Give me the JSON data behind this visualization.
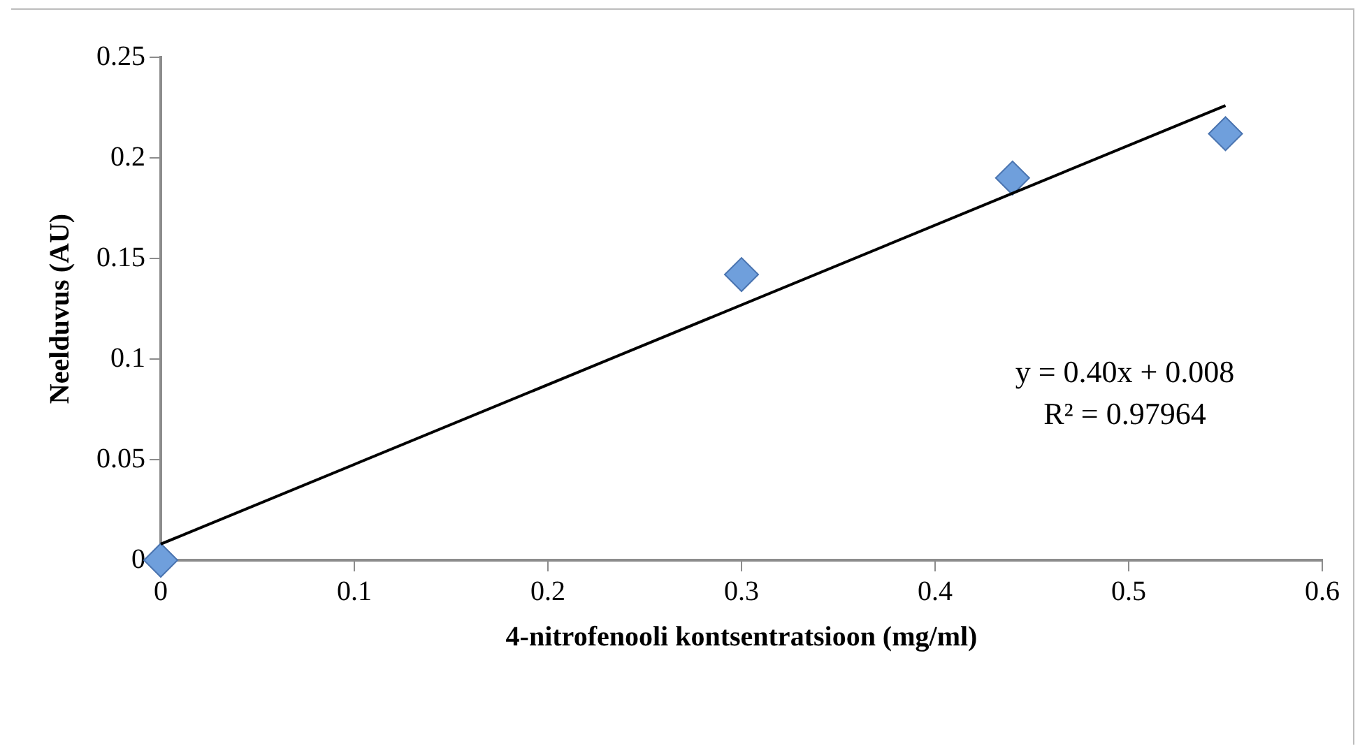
{
  "chart_data": {
    "type": "scatter",
    "xlabel": "4-nitrofenooli kontsentratsioon (mg/ml)",
    "ylabel": "Neelduvus (AU)",
    "xlim": [
      0,
      0.6
    ],
    "xticks": [
      0,
      0.1,
      0.2,
      0.3,
      0.4,
      0.5,
      0.6
    ],
    "ylim": [
      0,
      0.25
    ],
    "yticks": [
      0,
      0.05,
      0.1,
      0.15,
      0.2,
      0.25
    ],
    "grid": false,
    "legend": false,
    "marker": "diamond",
    "series": [
      {
        "color": "#6f9fdc",
        "x": [
          0,
          0.3,
          0.44,
          0.55
        ],
        "values": [
          0,
          0.142,
          0.19,
          0.212
        ]
      },
      {
        "type": "line",
        "color": "#000000",
        "marker": "none",
        "line_style": "solid",
        "x": [
          0,
          0.55
        ],
        "values": [
          0.008,
          0.226
        ]
      }
    ],
    "annotations": [
      "y = 0.40x + 0.008",
      "R² = 0.97964"
    ]
  }
}
